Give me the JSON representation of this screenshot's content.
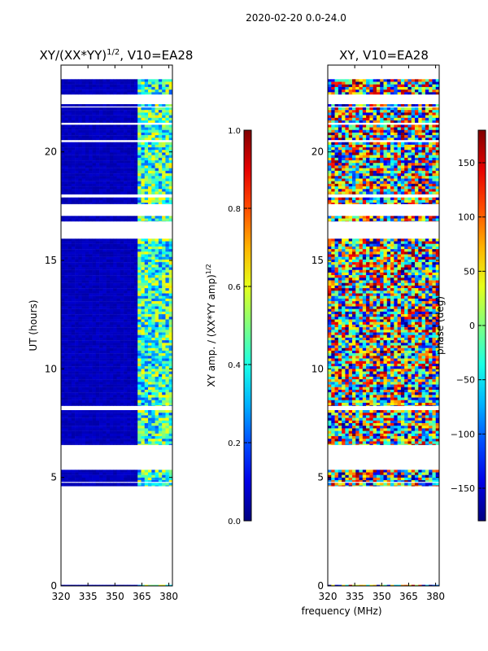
{
  "suptitle": "2020-02-20 0.0-24.0",
  "chart_data": [
    {
      "type": "heatmap",
      "title": "XY/(XX*YY)",
      "title_sup": "1/2",
      "title_suffix": ", V10=EA28",
      "xlabel": "",
      "ylabel": "UT (hours)",
      "xlim": [
        320,
        382
      ],
      "ylim": [
        0,
        24
      ],
      "xticks": [
        320,
        335,
        350,
        365,
        380
      ],
      "yticks": [
        0,
        5,
        10,
        15,
        20
      ],
      "colorbar": {
        "label": "XY amp. / (XX*YY amp)",
        "label_sup": "1/2",
        "range": [
          0.0,
          1.0
        ],
        "ticks": [
          "0.0",
          "0.2",
          "0.4",
          "0.6",
          "0.8",
          "1.0"
        ],
        "tick_values": [
          0.0,
          0.2,
          0.4,
          0.6,
          0.8,
          1.0
        ]
      },
      "data_hours": [
        [
          0.0,
          0.05
        ],
        [
          4.6,
          4.75
        ],
        [
          4.8,
          5.35
        ],
        [
          6.5,
          8.1
        ],
        [
          8.3,
          16.0
        ],
        [
          16.8,
          17.05
        ],
        [
          17.6,
          17.9
        ],
        [
          18.05,
          20.45
        ],
        [
          20.55,
          21.25
        ],
        [
          21.35,
          22.05
        ],
        [
          22.1,
          22.2
        ],
        [
          22.65,
          23.35
        ]
      ],
      "description_values": "amplitude mostly ~0.05 (dark blue); elevated ~0.25-0.6 in 362-382 MHz band"
    },
    {
      "type": "heatmap",
      "title": "XY, V10=EA28",
      "xlabel": "frequency (MHz)",
      "ylabel": "",
      "xlim": [
        320,
        382
      ],
      "ylim": [
        0,
        24
      ],
      "xticks": [
        320,
        335,
        350,
        365,
        380
      ],
      "yticks": [
        0,
        5,
        10,
        15,
        20
      ],
      "colorbar": {
        "label": "phase (deg)",
        "range": [
          -180,
          180
        ],
        "ticks": [
          "−150",
          "−100",
          "−50",
          "0",
          "50",
          "100",
          "150"
        ],
        "tick_values": [
          -150,
          -100,
          -50,
          0,
          50,
          100,
          150
        ]
      },
      "data_hours": [
        [
          0.0,
          0.05
        ],
        [
          4.6,
          4.75
        ],
        [
          4.8,
          5.35
        ],
        [
          6.5,
          8.1
        ],
        [
          8.3,
          16.0
        ],
        [
          16.8,
          17.05
        ],
        [
          17.6,
          17.9
        ],
        [
          18.05,
          20.45
        ],
        [
          20.55,
          21.25
        ],
        [
          21.35,
          22.05
        ],
        [
          22.1,
          22.2
        ],
        [
          22.65,
          23.35
        ]
      ],
      "description_values": "phase spans full range -180 to 180 deg, noisy"
    }
  ]
}
